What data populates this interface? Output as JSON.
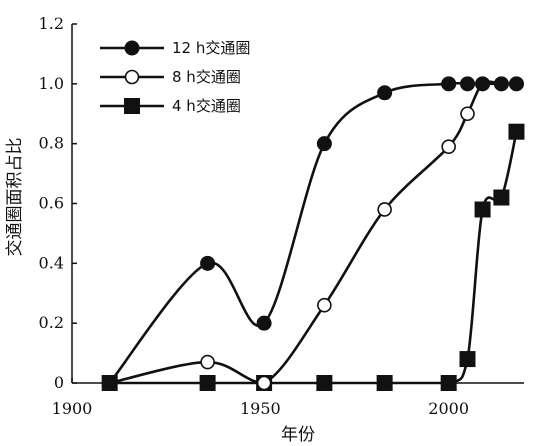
{
  "chart_data": {
    "type": "line",
    "xlabel": "年份",
    "ylabel": "交通圈面积占比",
    "xlim": [
      1900,
      2020
    ],
    "ylim": [
      0,
      1.2
    ],
    "xticks": [
      "1900",
      "1950",
      "2000"
    ],
    "yticks": [
      "0",
      "0.2",
      "0.4",
      "0.6",
      "0.8",
      "1.0",
      "1.2"
    ],
    "grid": false,
    "legend_position": "top-left",
    "series": [
      {
        "name": "12 h交通圈",
        "marker": "filled-circle",
        "x": [
          1910,
          1936,
          1951,
          1967,
          1983,
          2000,
          2005,
          2009,
          2014,
          2018
        ],
        "y": [
          0,
          0.4,
          0.2,
          0.8,
          0.97,
          1.0,
          1.0,
          1.0,
          1.0,
          1.0
        ]
      },
      {
        "name": "8 h交通圈",
        "marker": "open-circle",
        "x": [
          1910,
          1936,
          1951,
          1967,
          1983,
          2000,
          2005,
          2009,
          2014,
          2018
        ],
        "y": [
          0,
          0.07,
          0,
          0.26,
          0.58,
          0.79,
          0.9,
          1.0,
          1.0,
          1.0
        ]
      },
      {
        "name": "4 h交通圈",
        "marker": "filled-square",
        "x": [
          1910,
          1936,
          1951,
          1967,
          1983,
          2000,
          2005,
          2009,
          2014,
          2018
        ],
        "y": [
          0,
          0,
          0,
          0,
          0,
          0,
          0.08,
          0.58,
          0.62,
          0.84
        ]
      }
    ]
  }
}
